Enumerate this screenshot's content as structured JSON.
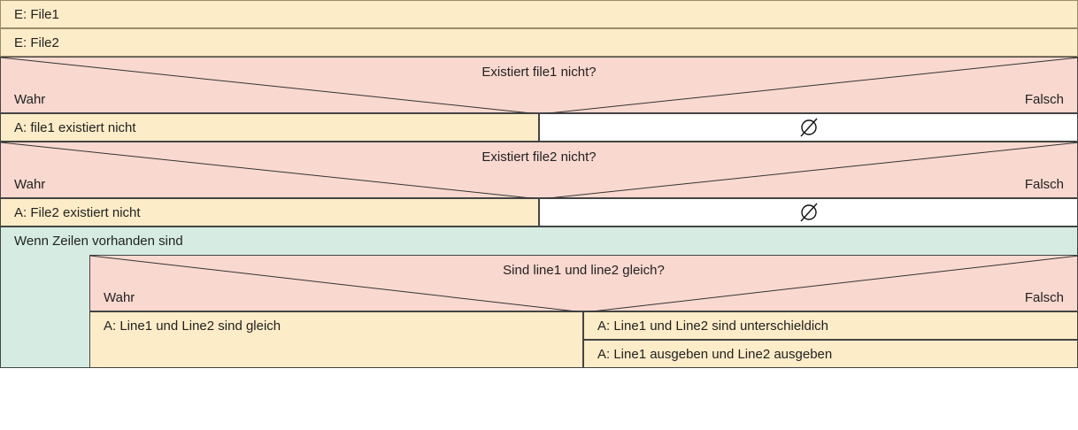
{
  "inputs": [
    "E: File1",
    "E: File2"
  ],
  "cond1": {
    "question": "Existiert file1 nicht?",
    "true_label": "Wahr",
    "false_label": "Falsch"
  },
  "action1": "A: file1 existiert nicht",
  "cond2": {
    "question": "Existiert file2 nicht?",
    "true_label": "Wahr",
    "false_label": "Falsch"
  },
  "action2": "A: File2 existiert nicht",
  "loop": {
    "label": "Wenn Zeilen vorhanden sind"
  },
  "cond3": {
    "question": "Sind line1 und line2 gleich?",
    "true_label": "Wahr",
    "false_label": "Falsch"
  },
  "action3_true": "A: Line1 und Line2 sind gleich",
  "action3_false_1": "A: Line1 und Line2 sind unterschieldich",
  "action3_false_2": "A: Line1 ausgeben und Line2 ausgeben",
  "colors": {
    "input": "#fdecc8",
    "condition": "#f9d8cf",
    "loop": "#d6ece2",
    "empty": "#ffffff"
  }
}
